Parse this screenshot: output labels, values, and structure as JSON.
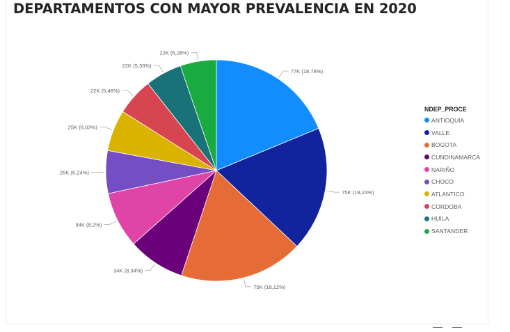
{
  "chart_data": {
    "type": "pie",
    "title": "DEPARTAMENTOS CON MAYOR PREVALENCIA EN 2020",
    "legend_title": "NDEP_PROCE",
    "legend_position": "right",
    "slices": [
      {
        "name": "ANTIOQUIA",
        "value": 77,
        "percent": 18.78,
        "label": "77K (18,78%)",
        "color": "#118DFF"
      },
      {
        "name": "VALLE",
        "value": 75,
        "percent": 18.23,
        "label": "75K (18,23%)",
        "color": "#12239E"
      },
      {
        "name": "BOGOTA",
        "value": 75,
        "percent": 18.12,
        "label": "75K (18,12%)",
        "color": "#E66C37"
      },
      {
        "name": "CUNDINAMARCA",
        "value": 34,
        "percent": 8.34,
        "label": "34K (8,34%)",
        "color": "#6B007B"
      },
      {
        "name": "NARIÑO",
        "value": 34,
        "percent": 8.2,
        "label": "34K (8,2%)",
        "color": "#E044A7"
      },
      {
        "name": "CHOCO",
        "value": 26,
        "percent": 6.24,
        "label": "26K (6,24%)",
        "color": "#744EC2"
      },
      {
        "name": "ATLANTICO",
        "value": 25,
        "percent": 6.03,
        "label": "25K (6,03%)",
        "color": "#D9B300"
      },
      {
        "name": "CORDOBA",
        "value": 22,
        "percent": 5.46,
        "label": "22K (5,46%)",
        "color": "#D64550"
      },
      {
        "name": "HUILA",
        "value": 22,
        "percent": 5.33,
        "label": "22K (5,33%)",
        "color": "#197278"
      },
      {
        "name": "SANTANDER",
        "value": 22,
        "percent": 5.28,
        "label": "22K (5,28%)",
        "color": "#1AAB40"
      }
    ]
  }
}
